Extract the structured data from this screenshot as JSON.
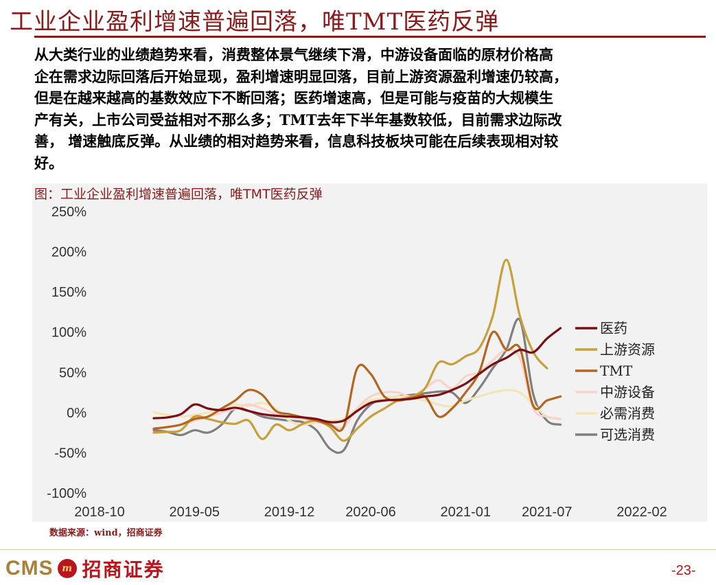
{
  "slide": {
    "title": "工业企业盈利增速普遍回落，唯TMT医药反弹",
    "summary_lines": [
      "从大类行业的业绩趋势来看，消费整体景气继续下滑，中游设备面临的原材价格高",
      "企在需求边际回落后开始显现，盈利增速明显回落，目前上游资源盈利增速仍较高，",
      "但是在越来越高的基数效应下不断回落；医药增速高，但是可能与疫苗的大规模生",
      "产有关，上市公司受益相对不那么多；TMT去年下半年基数较低，目前需求边际改",
      "善，  增速触底反弹。从业绩的相对趋势来看，信息科技板块可能在后续表现相对较",
      "好。"
    ],
    "source": "数据来源：wind，招商证券",
    "logo_text": "CMS",
    "logo_mark": "m",
    "logo_name": "招商证券",
    "page_number": "-23-"
  },
  "chart_data": {
    "type": "line",
    "title": "图：工业企业盈利增速普遍回落，唯TMT医药反弹",
    "xlabel": "",
    "ylabel": "",
    "x_ticks": [
      "2018-10",
      "2019-05",
      "2019-12",
      "2020-06",
      "2021-01",
      "2021-07",
      "2022-02"
    ],
    "x_range": [
      "2018-10",
      "2022-02"
    ],
    "y_ticks": [
      "250%",
      "200%",
      "150%",
      "100%",
      "50%",
      "0%",
      "-50%",
      "-100%"
    ],
    "ylim": [
      -100,
      250
    ],
    "grid": false,
    "legend_position": "right",
    "x": [
      "2019-02",
      "2019-03",
      "2019-04",
      "2019-05",
      "2019-06",
      "2019-07",
      "2019-08",
      "2019-09",
      "2019-10",
      "2019-11",
      "2019-12",
      "2020-01",
      "2020-02",
      "2020-03",
      "2020-04",
      "2020-05",
      "2020-06",
      "2020-07",
      "2020-08",
      "2020-09",
      "2020-10",
      "2020-11",
      "2020-12",
      "2021-01",
      "2021-02",
      "2021-03",
      "2021-04",
      "2021-05",
      "2021-06",
      "2021-07",
      "2021-08"
    ],
    "series": [
      {
        "name": "医药",
        "color": "#7a0e14",
        "values": [
          -7,
          -6,
          -2,
          10,
          5,
          3,
          6,
          2,
          -2,
          -4,
          -5,
          -6,
          -8,
          -12,
          -10,
          2,
          12,
          15,
          16,
          17,
          20,
          22,
          28,
          36,
          48,
          60,
          68,
          78,
          75,
          92,
          105
        ]
      },
      {
        "name": "上游资源",
        "color": "#c7a03a",
        "values": [
          -25,
          -24,
          -22,
          -5,
          -8,
          -12,
          -14,
          -10,
          -33,
          -15,
          -22,
          -14,
          -10,
          -18,
          -35,
          -20,
          -5,
          5,
          15,
          20,
          30,
          62,
          60,
          70,
          80,
          120,
          190,
          120,
          75,
          55,
          null
        ]
      },
      {
        "name": "TMT",
        "color": "#b5651d",
        "values": [
          -20,
          -18,
          -15,
          -8,
          -5,
          5,
          15,
          28,
          22,
          2,
          -2,
          -6,
          -10,
          -15,
          -18,
          55,
          48,
          20,
          15,
          18,
          20,
          -5,
          5,
          25,
          50,
          100,
          78,
          80,
          8,
          15,
          20
        ]
      },
      {
        "name": "中游设备",
        "color": "#f9d3c8",
        "values": [
          -20,
          -18,
          -15,
          -10,
          -5,
          0,
          5,
          10,
          5,
          -2,
          -5,
          -8,
          -12,
          -15,
          -18,
          5,
          20,
          25,
          25,
          20,
          30,
          40,
          30,
          45,
          50,
          65,
          78,
          68,
          5,
          -5,
          -8
        ]
      },
      {
        "name": "必需消费",
        "color": "#f2e6b8",
        "values": [
          0,
          -3,
          -5,
          -3,
          0,
          5,
          10,
          8,
          12,
          5,
          -10,
          -15,
          -12,
          -10,
          -8,
          5,
          15,
          18,
          20,
          18,
          15,
          10,
          8,
          15,
          20,
          25,
          28,
          25,
          10,
          -5,
          -8
        ]
      },
      {
        "name": "可选消费",
        "color": "#7f7f7f",
        "values": [
          -22,
          -24,
          -28,
          -22,
          -25,
          -15,
          5,
          2,
          -5,
          -8,
          -10,
          -12,
          -22,
          -45,
          -47,
          -10,
          10,
          18,
          20,
          22,
          24,
          26,
          25,
          12,
          30,
          55,
          78,
          115,
          22,
          -10,
          -15
        ]
      }
    ]
  }
}
